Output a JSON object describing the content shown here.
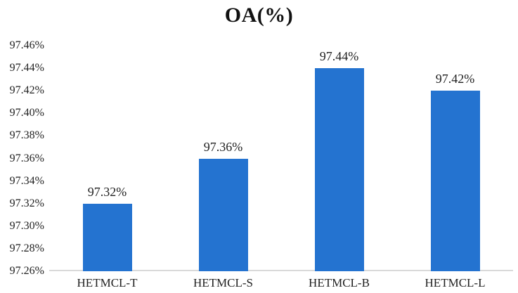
{
  "title": "OA(%)",
  "chart_data": {
    "type": "bar",
    "title": "OA(%)",
    "categories": [
      "HETMCL-T",
      "HETMCL-S",
      "HETMCL-B",
      "HETMCL-L"
    ],
    "values": [
      97.32,
      97.36,
      97.44,
      97.42
    ],
    "value_labels": [
      "97.32%",
      "97.36%",
      "97.44%",
      "97.42%"
    ],
    "ytick_labels": [
      "97.26%",
      "97.28%",
      "97.30%",
      "97.32%",
      "97.34%",
      "97.36%",
      "97.38%",
      "97.40%",
      "97.42%",
      "97.44%",
      "97.46%"
    ],
    "ytick_values": [
      97.26,
      97.28,
      97.3,
      97.32,
      97.34,
      97.36,
      97.38,
      97.4,
      97.42,
      97.44,
      97.46
    ],
    "ylim": [
      97.26,
      97.46
    ],
    "xlabel": "",
    "ylabel": "",
    "grid": false,
    "legend": false,
    "bar_color": "#2473d0",
    "axis_line_color": "#d9d9d9",
    "text_color": "#1f1f1f",
    "title_color": "#111111"
  }
}
